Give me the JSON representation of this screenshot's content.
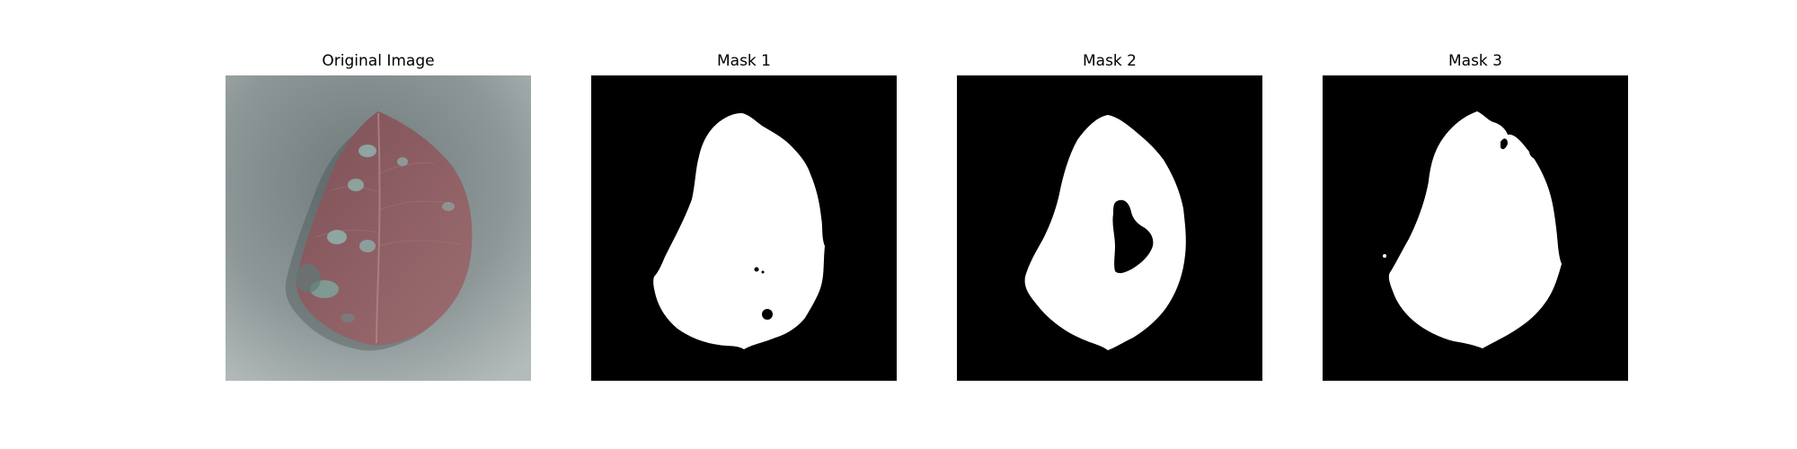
{
  "figure": {
    "panels": [
      {
        "title": "Original Image",
        "image": "leaf-photo"
      },
      {
        "title": "Mask 1",
        "image": "binary-mask"
      },
      {
        "title": "Mask 2",
        "image": "binary-mask"
      },
      {
        "title": "Mask 3",
        "image": "binary-mask"
      }
    ]
  },
  "colors": {
    "background_gray": "#9aa3a3",
    "leaf": "#8d5e63",
    "leaf_spots": "#8fb3ad",
    "mask_background": "#000000",
    "mask_foreground": "#ffffff"
  }
}
